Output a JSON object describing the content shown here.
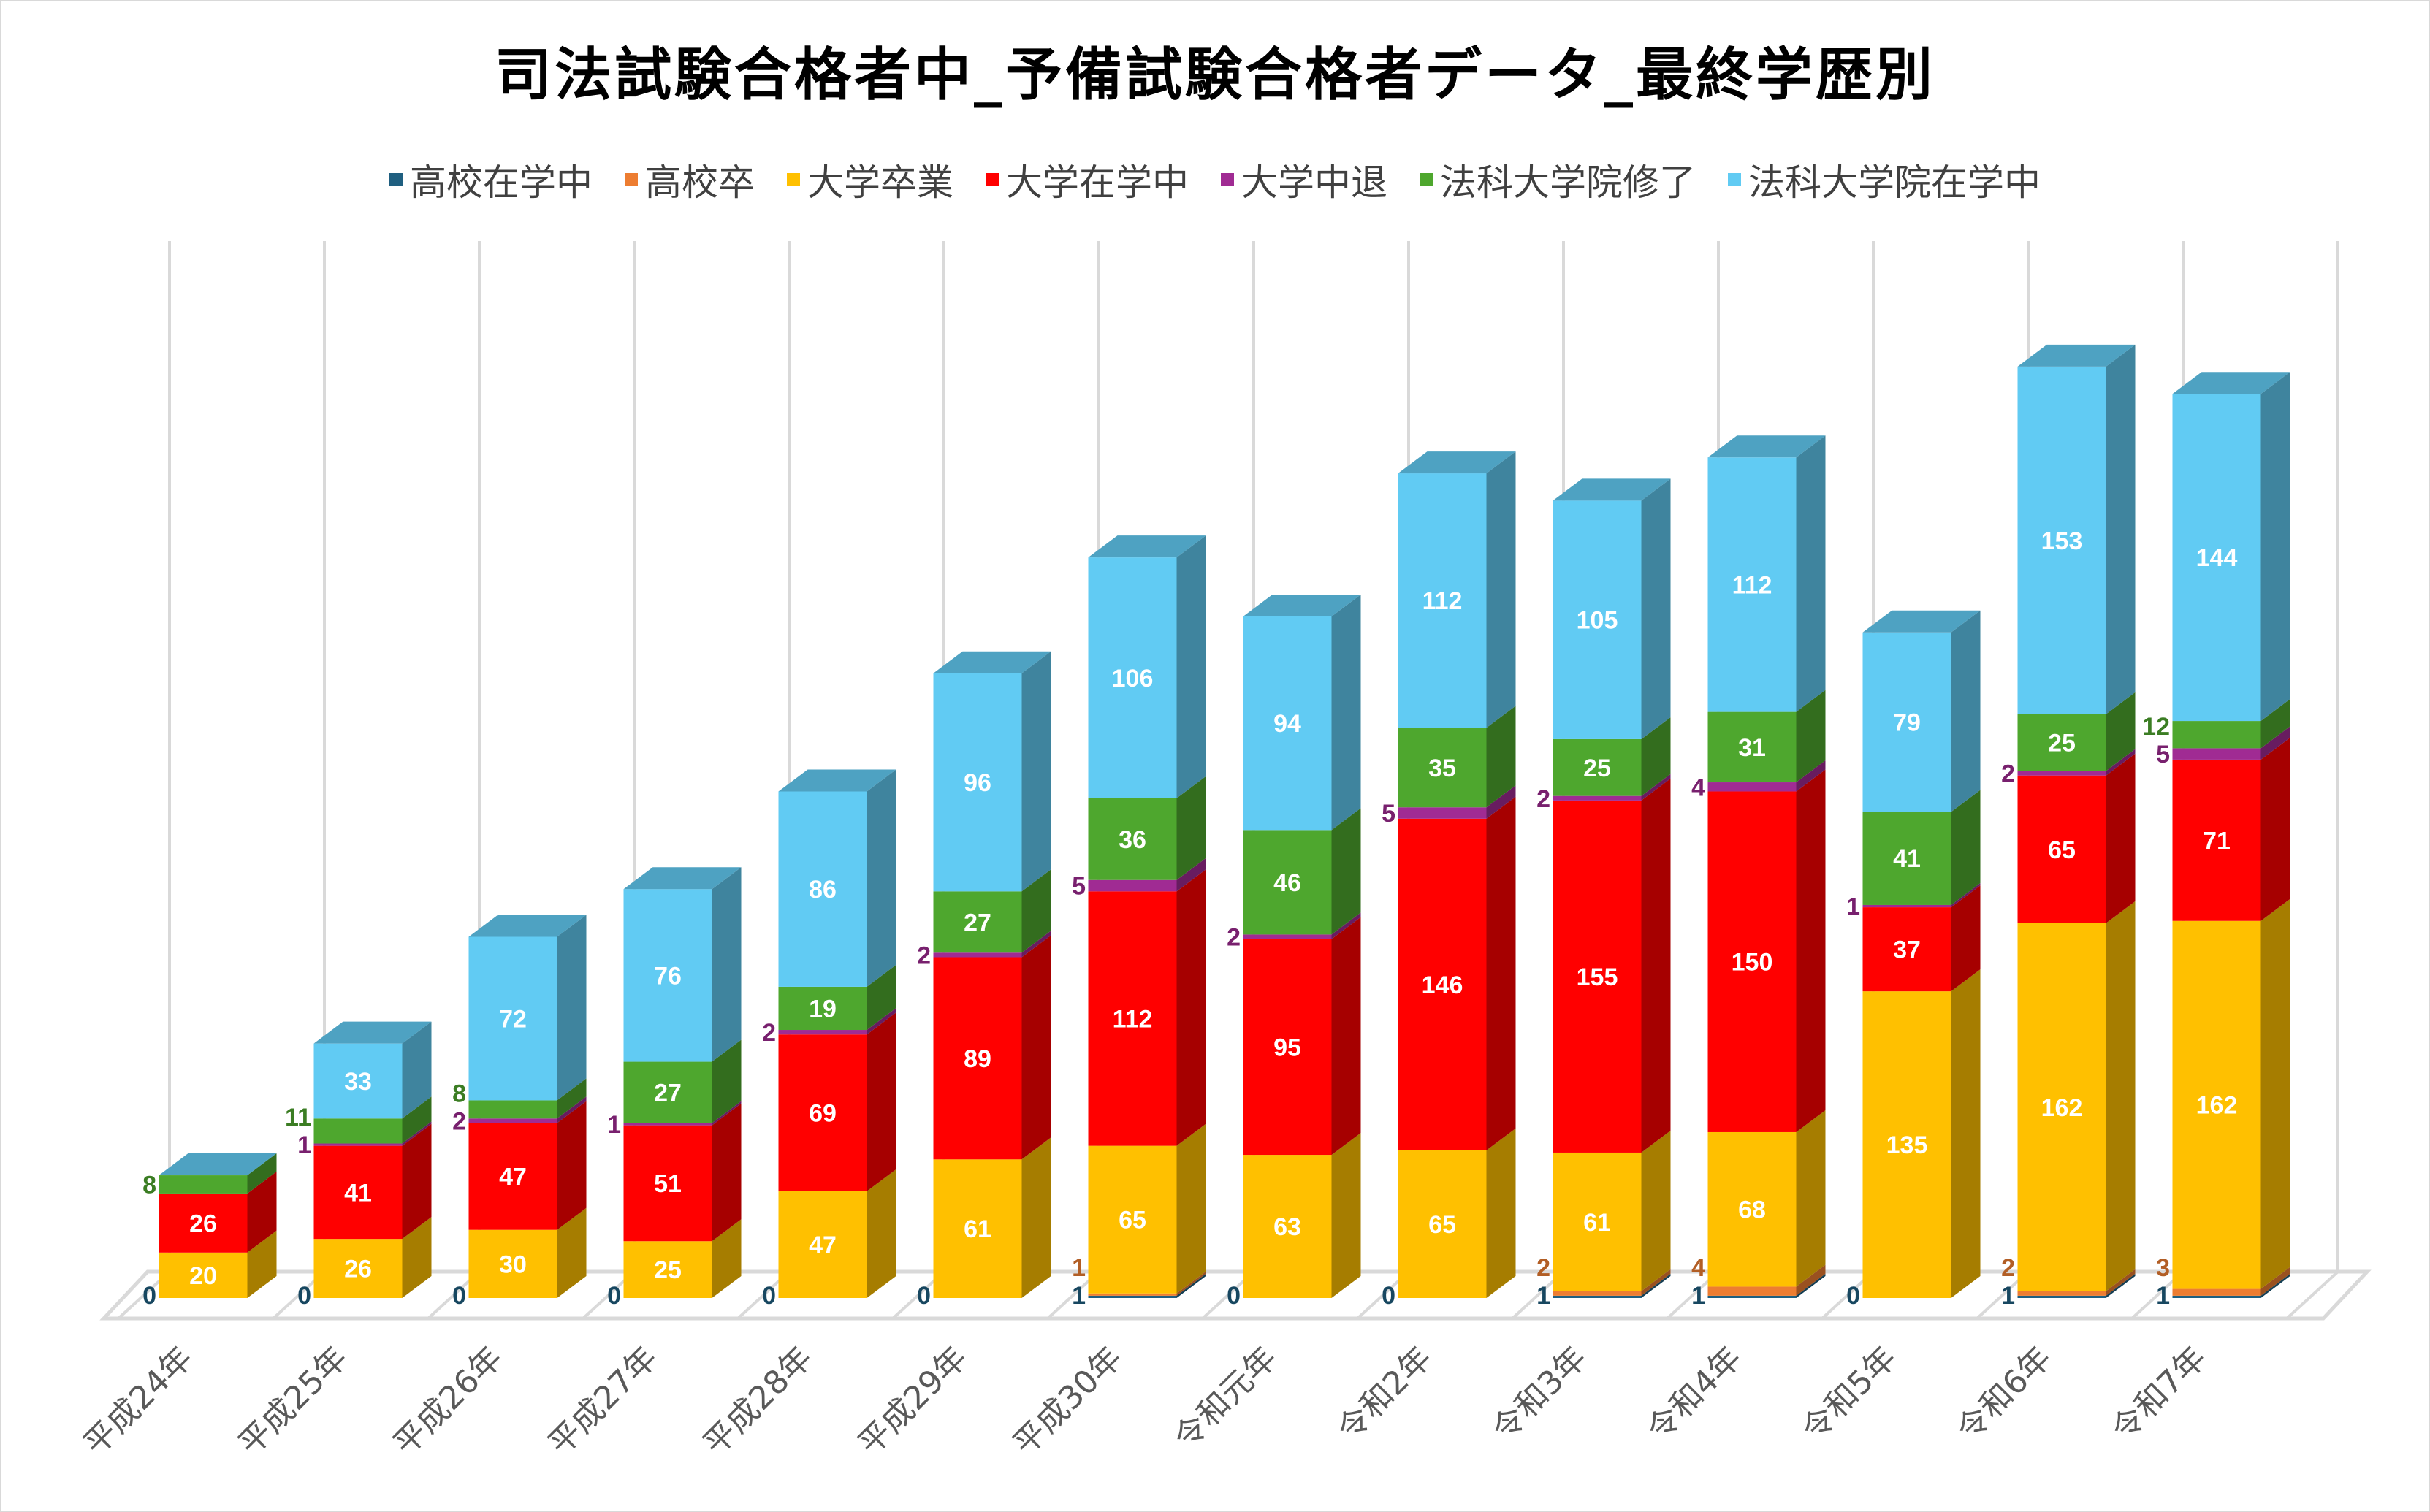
{
  "chart_data": {
    "type": "bar",
    "stacked": true,
    "three_d": true,
    "title": "司法試験合格者中_予備試験合格者データ_最終学歴別",
    "legend_position": "top",
    "categories": [
      "平成24年",
      "平成25年",
      "平成26年",
      "平成27年",
      "平成28年",
      "平成29年",
      "平成30年",
      "令和元年",
      "令和2年",
      "令和3年",
      "令和4年",
      "令和5年",
      "令和6年",
      "令和7年"
    ],
    "series": [
      {
        "name": "高校在学中",
        "color": "#1f5f80",
        "values": [
          0,
          0,
          0,
          0,
          0,
          0,
          1,
          0,
          0,
          1,
          1,
          0,
          1,
          1
        ]
      },
      {
        "name": "高校卒",
        "color": "#ed7d31",
        "values": [
          0,
          0,
          0,
          0,
          0,
          0,
          1,
          0,
          0,
          2,
          4,
          0,
          2,
          3
        ]
      },
      {
        "name": "大学卒業",
        "color": "#ffc000",
        "values": [
          20,
          26,
          30,
          25,
          47,
          61,
          65,
          63,
          65,
          61,
          68,
          135,
          162,
          162
        ]
      },
      {
        "name": "大学在学中",
        "color": "#ff0000",
        "values": [
          26,
          41,
          47,
          51,
          69,
          89,
          112,
          95,
          146,
          155,
          150,
          37,
          65,
          71
        ]
      },
      {
        "name": "大学中退",
        "color": "#a02b93",
        "values": [
          0,
          1,
          2,
          1,
          2,
          2,
          5,
          2,
          5,
          2,
          4,
          1,
          2,
          5
        ]
      },
      {
        "name": "法科大学院修了",
        "color": "#4ea72e",
        "values": [
          8,
          11,
          8,
          27,
          19,
          27,
          36,
          46,
          35,
          25,
          31,
          41,
          25,
          12
        ]
      },
      {
        "name": "法科大学院在学中",
        "color": "#61cbf3",
        "values": [
          0,
          33,
          72,
          76,
          86,
          96,
          106,
          94,
          112,
          105,
          112,
          79,
          153,
          144
        ]
      }
    ],
    "xlabel": "",
    "ylabel": "",
    "ylim": [
      0,
      420
    ],
    "grid": true
  }
}
